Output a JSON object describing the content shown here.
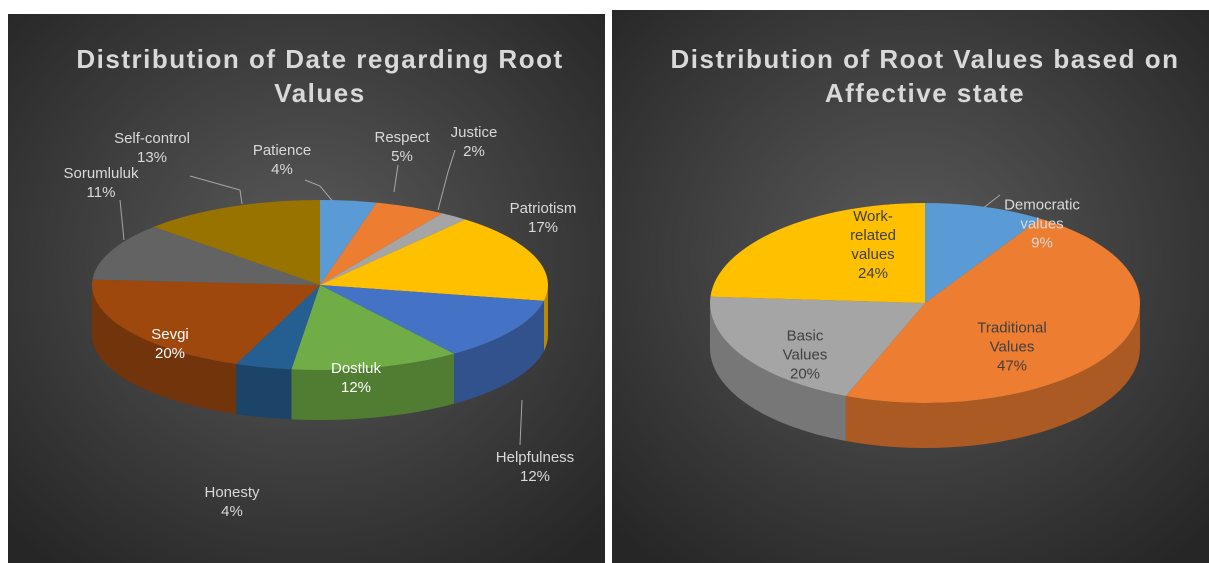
{
  "chart_data": [
    {
      "type": "pie",
      "title": "Distribution of Date regarding Root Values",
      "categories": [
        "Patience",
        "Respect",
        "Justice",
        "Patriotism",
        "Helpfulness",
        "Dostluk",
        "Honesty",
        "Sevgi",
        "Sorumluluk",
        "Self-control"
      ],
      "values": [
        4,
        5,
        2,
        17,
        12,
        12,
        4,
        20,
        11,
        13
      ],
      "value_labels": [
        "4%",
        "5%",
        "2%",
        "17%",
        "12%",
        "12%",
        "4%",
        "20%",
        "11%",
        "13%"
      ],
      "colors": [
        "#5b9bd5",
        "#ed7d31",
        "#a5a5a5",
        "#ffc000",
        "#4472c4",
        "#70ad47",
        "#255e91",
        "#9e480e",
        "#636363",
        "#997300"
      ]
    },
    {
      "type": "pie",
      "title": "Distribution of Root Values based on Affective state",
      "categories": [
        "Democratic values",
        "Traditional Values",
        "Basic Values",
        "Work-related values"
      ],
      "values": [
        9,
        47,
        20,
        24
      ],
      "value_labels": [
        "9%",
        "47%",
        "20%",
        "24%"
      ],
      "colors": [
        "#5b9bd5",
        "#ed7d31",
        "#a5a5a5",
        "#ffc000"
      ]
    }
  ]
}
